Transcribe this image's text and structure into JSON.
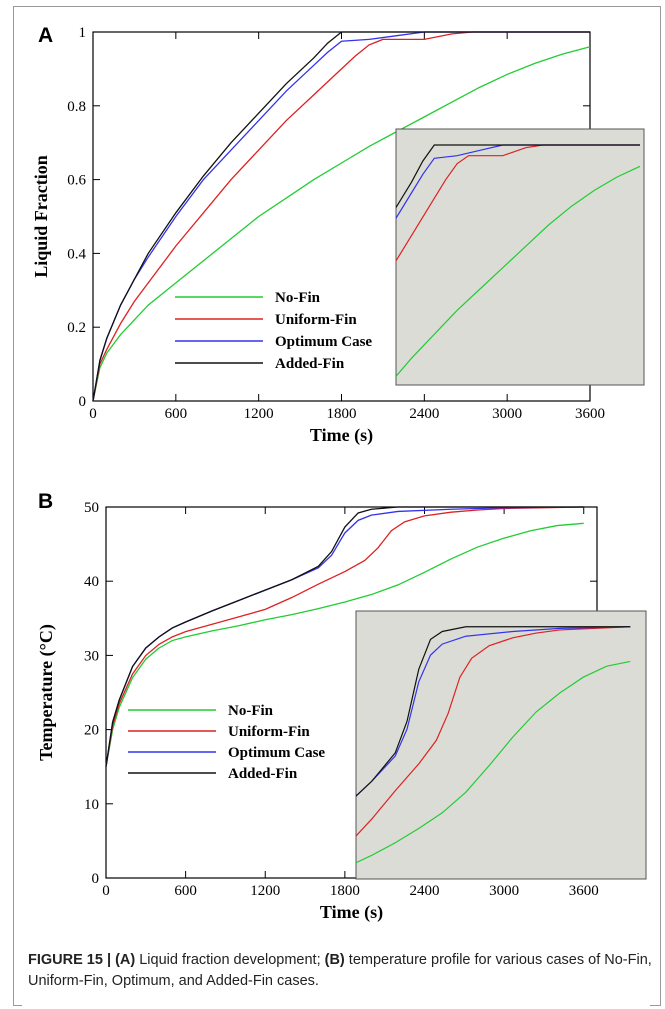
{
  "colors": {
    "No-Fin": "#22cc33",
    "Uniform-Fin": "#dd2222",
    "Optimum Case": "#3333ee",
    "Added-Fin": "#111111",
    "inset_bg": "#dcdcd6"
  },
  "caption": {
    "figure_label": "FIGURE 15 | ",
    "part_a_label": "(A)",
    "part_a_text": " Liquid fraction development; ",
    "part_b_label": "(B)",
    "part_b_text": " temperature profile for various cases of No-Fin, Uniform-Fin, Optimum, and Added-Fin cases."
  },
  "chart_data": [
    {
      "panel": "A",
      "type": "line",
      "xlabel": "Time (s)",
      "ylabel": "Liquid Fraction",
      "xlim": [
        0,
        3600
      ],
      "ylim": [
        0,
        1
      ],
      "xticks": [
        0,
        600,
        1200,
        1800,
        2400,
        3000,
        3600
      ],
      "yticks": [
        0,
        0.2,
        0.4,
        0.6,
        0.8,
        1
      ],
      "ytick_labels": [
        "0",
        "0.2",
        "0.4",
        "0.6",
        "0.8",
        "1"
      ],
      "legend": [
        "No-Fin",
        "Uniform-Fin",
        "Optimum Case",
        "Added-Fin"
      ],
      "legend_position": "bottom-left",
      "inset": "zoomed view (gray background), right side",
      "series": [
        {
          "name": "No-Fin",
          "x": [
            0,
            50,
            100,
            200,
            300,
            400,
            600,
            800,
            1000,
            1200,
            1400,
            1600,
            1800,
            2000,
            2200,
            2400,
            2600,
            2800,
            3000,
            3200,
            3400,
            3600
          ],
          "y": [
            0,
            0.09,
            0.13,
            0.18,
            0.22,
            0.26,
            0.32,
            0.38,
            0.44,
            0.5,
            0.55,
            0.6,
            0.645,
            0.69,
            0.73,
            0.77,
            0.81,
            0.85,
            0.885,
            0.915,
            0.94,
            0.96
          ]
        },
        {
          "name": "Uniform-Fin",
          "x": [
            0,
            50,
            100,
            200,
            300,
            400,
            600,
            800,
            1000,
            1200,
            1400,
            1600,
            1800,
            1900,
            2000,
            2100,
            2200,
            2400,
            2600,
            2750,
            3600
          ],
          "y": [
            0,
            0.1,
            0.14,
            0.21,
            0.27,
            0.32,
            0.42,
            0.51,
            0.6,
            0.68,
            0.76,
            0.83,
            0.9,
            0.935,
            0.965,
            0.98,
            0.98,
            0.98,
            0.995,
            1.0,
            1.0
          ]
        },
        {
          "name": "Optimum Case",
          "x": [
            0,
            50,
            100,
            200,
            300,
            400,
            600,
            800,
            1000,
            1200,
            1400,
            1600,
            1700,
            1800,
            2000,
            2200,
            2400,
            3600
          ],
          "y": [
            0,
            0.11,
            0.17,
            0.26,
            0.33,
            0.39,
            0.5,
            0.6,
            0.68,
            0.76,
            0.84,
            0.91,
            0.945,
            0.975,
            0.98,
            0.99,
            1.0,
            1.0
          ]
        },
        {
          "name": "Added-Fin",
          "x": [
            0,
            50,
            100,
            200,
            300,
            400,
            600,
            800,
            1000,
            1200,
            1400,
            1600,
            1700,
            1800,
            3600
          ],
          "y": [
            0,
            0.11,
            0.17,
            0.26,
            0.33,
            0.4,
            0.51,
            0.61,
            0.7,
            0.78,
            0.86,
            0.93,
            0.97,
            1.0,
            1.0
          ]
        }
      ]
    },
    {
      "panel": "B",
      "type": "line",
      "xlabel": "Time (s)",
      "ylabel": "Temperature (°C)",
      "xlim": [
        0,
        3700
      ],
      "ylim": [
        0,
        50
      ],
      "xticks": [
        0,
        600,
        1200,
        1800,
        2400,
        3000,
        3600
      ],
      "yticks": [
        0,
        10,
        20,
        30,
        40,
        50
      ],
      "ytick_labels": [
        "0",
        "10",
        "20",
        "30",
        "40",
        "50"
      ],
      "legend": [
        "No-Fin",
        "Uniform-Fin",
        "Optimum Case",
        "Added-Fin"
      ],
      "legend_position": "bottom-left",
      "inset": "zoomed view (gray background), right side",
      "series": [
        {
          "name": "No-Fin",
          "x": [
            0,
            50,
            100,
            200,
            300,
            400,
            500,
            600,
            800,
            1000,
            1200,
            1400,
            1600,
            1800,
            2000,
            2200,
            2400,
            2600,
            2800,
            3000,
            3200,
            3400,
            3600
          ],
          "y": [
            15,
            20,
            23,
            27,
            29.5,
            31,
            32,
            32.5,
            33.3,
            34,
            34.8,
            35.5,
            36.3,
            37.2,
            38.2,
            39.5,
            41.2,
            43,
            44.6,
            45.8,
            46.8,
            47.5,
            47.8
          ]
        },
        {
          "name": "Uniform-Fin",
          "x": [
            0,
            50,
            100,
            200,
            300,
            400,
            500,
            600,
            800,
            1000,
            1200,
            1400,
            1600,
            1800,
            1950,
            2050,
            2150,
            2250,
            2400,
            2600,
            2800,
            3000,
            3600
          ],
          "y": [
            15,
            20.5,
            23.5,
            27.5,
            30,
            31.5,
            32.5,
            33.2,
            34.2,
            35.2,
            36.2,
            37.8,
            39.6,
            41.3,
            42.8,
            44.5,
            46.8,
            48,
            48.8,
            49.3,
            49.6,
            49.8,
            50
          ]
        },
        {
          "name": "Optimum Case",
          "x": [
            0,
            50,
            100,
            200,
            300,
            400,
            500,
            600,
            800,
            1000,
            1200,
            1400,
            1600,
            1700,
            1800,
            1900,
            2000,
            2200,
            2600,
            3000,
            3600
          ],
          "y": [
            15,
            21,
            24,
            28.5,
            31,
            32.5,
            33.7,
            34.5,
            36,
            37.4,
            38.8,
            40.2,
            41.8,
            43.5,
            46.5,
            48.2,
            48.9,
            49.4,
            49.7,
            49.9,
            50
          ]
        },
        {
          "name": "Added-Fin",
          "x": [
            0,
            50,
            100,
            200,
            300,
            400,
            500,
            600,
            800,
            1000,
            1200,
            1400,
            1600,
            1700,
            1800,
            1900,
            2000,
            2200,
            3600
          ],
          "y": [
            15,
            21,
            24,
            28.5,
            31,
            32.5,
            33.7,
            34.5,
            36,
            37.4,
            38.8,
            40.2,
            42,
            44,
            47.3,
            49.2,
            49.7,
            50,
            50
          ]
        }
      ]
    }
  ]
}
